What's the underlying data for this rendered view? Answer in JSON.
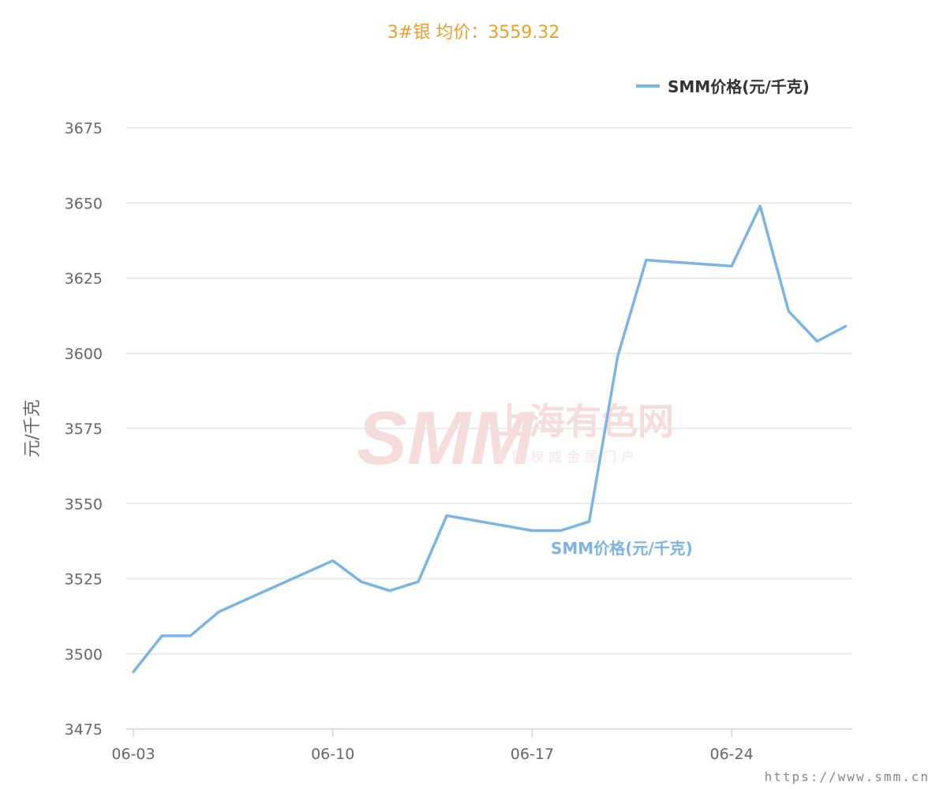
{
  "title": "3#银 均价：3559.32",
  "watermark": {
    "logo_text": "SMM",
    "name": "上海有色网",
    "slogan": "中国权威金属门户"
  },
  "footer_url": "https://www.smm.cn",
  "colors": {
    "title": "#e8a02a",
    "line": "#7cb5e4",
    "grid": "#e6e6e6",
    "axis": "#ccd6eb"
  },
  "chart_data": {
    "type": "line",
    "title": "3#银 均价：3559.32",
    "ylabel": "元/千克",
    "xlabel": "",
    "ylim": [
      3475,
      3675
    ],
    "yticks": [
      3475,
      3500,
      3525,
      3550,
      3575,
      3600,
      3625,
      3650,
      3675
    ],
    "xticks": [
      "06-03",
      "06-10",
      "06-17",
      "06-24"
    ],
    "grid": true,
    "legend_position": "top-right",
    "x": [
      "06-03",
      "06-04",
      "06-05",
      "06-06",
      "06-10",
      "06-11",
      "06-12",
      "06-13",
      "06-14",
      "06-17",
      "06-18",
      "06-19",
      "06-20",
      "06-21",
      "06-24",
      "06-25",
      "06-26",
      "06-27",
      "06-28"
    ],
    "series": [
      {
        "name": "SMM价格(元/千克)",
        "values": [
          3494,
          3506,
          3506,
          3514,
          3531,
          3524,
          3521,
          3524,
          3546,
          3541,
          3541,
          3544,
          3599,
          3631,
          3629,
          3649,
          3614,
          3604,
          3609
        ]
      }
    ]
  }
}
